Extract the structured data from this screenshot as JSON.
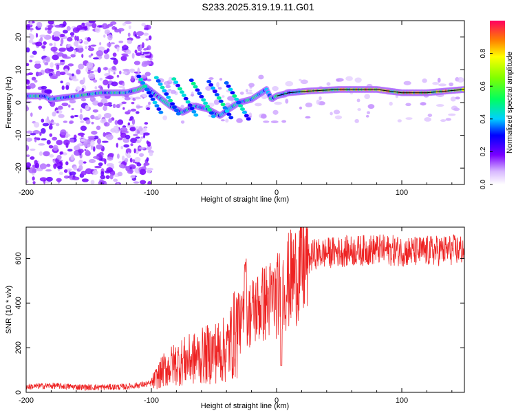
{
  "title": "S233.2025.319.19.11.G01",
  "spectrogram": {
    "type": "heatmap",
    "xlabel": "Height of straight line (km)",
    "ylabel": "Frequency (Hz)",
    "xlim": [
      -200,
      150
    ],
    "ylim": [
      -25,
      25
    ],
    "xticks": [
      -200,
      -100,
      0,
      100
    ],
    "yticks": [
      -20,
      -10,
      0,
      10,
      20
    ],
    "colorbar": {
      "label": "Normalized spectral amplitude",
      "range": [
        0,
        1
      ],
      "ticks": [
        0.0,
        0.2,
        0.4,
        0.6,
        0.8
      ]
    },
    "ridge": [
      {
        "x": -200,
        "f": 2
      },
      {
        "x": -185,
        "f": 2
      },
      {
        "x": -180,
        "f": 1
      },
      {
        "x": -140,
        "f": 3
      },
      {
        "x": -120,
        "f": 3
      },
      {
        "x": -110,
        "f": 4
      },
      {
        "x": -105,
        "f": 5
      },
      {
        "x": -95,
        "f": 2
      },
      {
        "x": -85,
        "f": -1
      },
      {
        "x": -75,
        "f": -3
      },
      {
        "x": -65,
        "f": -1
      },
      {
        "x": -55,
        "f": -2
      },
      {
        "x": -45,
        "f": -4
      },
      {
        "x": -38,
        "f": -2
      },
      {
        "x": -30,
        "f": 0
      },
      {
        "x": -20,
        "f": 1
      },
      {
        "x": -12,
        "f": 3
      },
      {
        "x": -8,
        "f": 4
      },
      {
        "x": -4,
        "f": 1
      },
      {
        "x": 0,
        "f": 2
      },
      {
        "x": 10,
        "f": 3
      },
      {
        "x": 25,
        "f": 3.5
      },
      {
        "x": 50,
        "f": 4
      },
      {
        "x": 80,
        "f": 4
      },
      {
        "x": 100,
        "f": 3
      },
      {
        "x": 120,
        "f": 3
      },
      {
        "x": 150,
        "f": 4
      }
    ]
  },
  "snr": {
    "type": "line",
    "xlabel": "Height of straight line (km)",
    "ylabel": "SNR (10 * v/v)",
    "xlim": [
      -200,
      150
    ],
    "ylim": [
      0,
      740
    ],
    "xticks": [
      -200,
      -100,
      0,
      100
    ],
    "yticks": [
      0,
      200,
      400,
      600
    ],
    "color": "#ee2222",
    "envelope": [
      {
        "x": -200,
        "y": 25
      },
      {
        "x": -180,
        "y": 30
      },
      {
        "x": -150,
        "y": 22
      },
      {
        "x": -120,
        "y": 25
      },
      {
        "x": -100,
        "y": 40
      },
      {
        "x": -90,
        "y": 100
      },
      {
        "x": -80,
        "y": 130
      },
      {
        "x": -60,
        "y": 160
      },
      {
        "x": -50,
        "y": 180
      },
      {
        "x": -40,
        "y": 190
      },
      {
        "x": -30,
        "y": 300
      },
      {
        "x": -25,
        "y": 330
      },
      {
        "x": -20,
        "y": 360
      },
      {
        "x": -10,
        "y": 400
      },
      {
        "x": 0,
        "y": 430
      },
      {
        "x": 10,
        "y": 500
      },
      {
        "x": 20,
        "y": 560
      },
      {
        "x": 30,
        "y": 620
      },
      {
        "x": 50,
        "y": 630
      },
      {
        "x": 80,
        "y": 640
      },
      {
        "x": 110,
        "y": 630
      },
      {
        "x": 150,
        "y": 640
      }
    ]
  }
}
